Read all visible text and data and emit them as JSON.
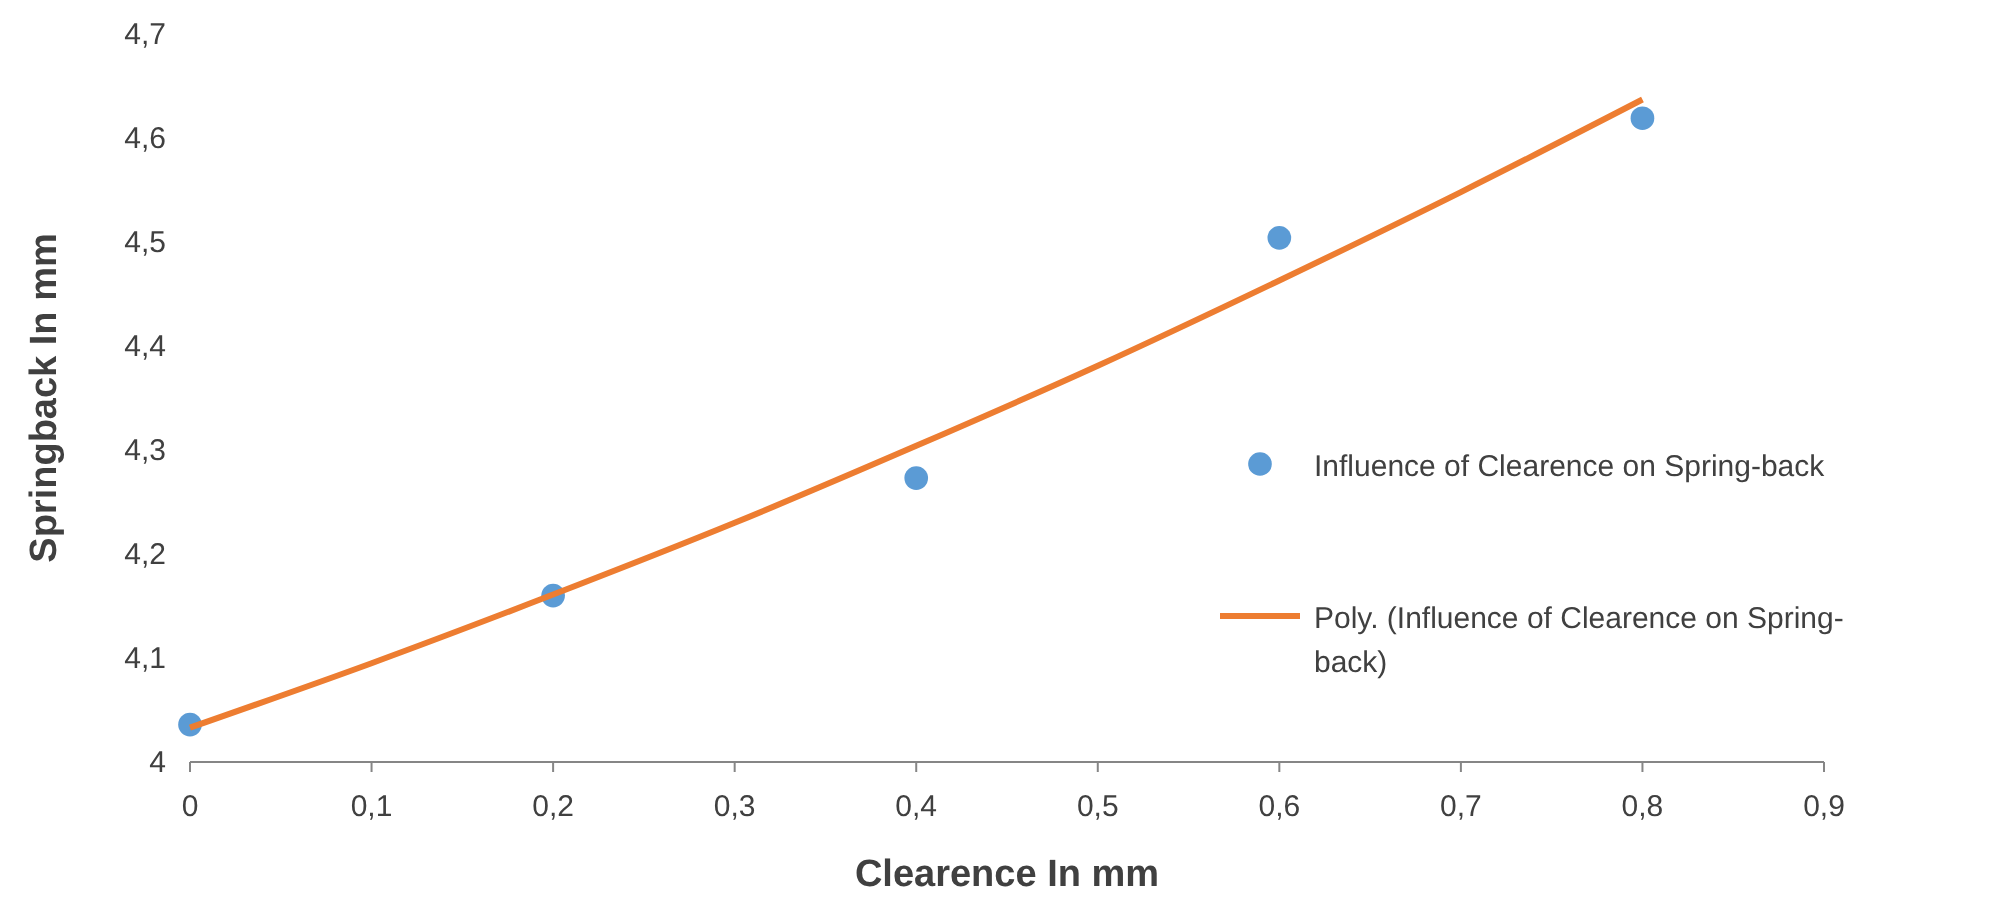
{
  "chart_data": {
    "type": "scatter",
    "xlabel": "Clearence In mm",
    "ylabel": "Springback In mm",
    "legend": "right",
    "marker": "circle",
    "grid": false,
    "xlim": [
      0,
      0.9
    ],
    "xticks": [
      0,
      {
        "value": 0.1,
        "label": "0,1"
      },
      {
        "value": 0.2,
        "label": "0,2"
      },
      {
        "value": 0.3,
        "label": "0,3"
      },
      {
        "value": 0.4,
        "label": "0,4"
      },
      {
        "value": 0.5,
        "label": "0,5"
      },
      {
        "value": 0.6,
        "label": "0,6"
      },
      {
        "value": 0.7,
        "label": "0,7"
      },
      {
        "value": 0.8,
        "label": "0,8"
      },
      {
        "value": 0.9,
        "label": "0,9"
      }
    ],
    "ylim": [
      4,
      4.7
    ],
    "yticks": [
      4,
      {
        "value": 4.1,
        "label": "4,1"
      },
      {
        "value": 4.2,
        "label": "4,2"
      },
      {
        "value": 4.3,
        "label": "4,3"
      },
      {
        "value": 4.4,
        "label": "4,4"
      },
      {
        "value": 4.5,
        "label": "4,5"
      },
      {
        "value": 4.6,
        "label": "4,6"
      },
      {
        "value": 4.7,
        "label": "4,7"
      }
    ],
    "series": [
      {
        "name": "Influence of Clearence on Spring-back",
        "color": "#5b9bd5",
        "x": [
          0,
          0.2,
          0.4,
          0.6,
          0.8
        ],
        "values": [
          4.036,
          4.16,
          4.273,
          4.504,
          4.619
        ]
      },
      {
        "name": "Poly. (Influence of Clearence on Spring-back)",
        "type": "line",
        "color": "#ed7d31",
        "marker": "none",
        "x": [
          0,
          0.1,
          0.2,
          0.3,
          0.4,
          0.5,
          0.6,
          0.7,
          0.8
        ],
        "values": [
          4.033,
          4.095,
          4.161,
          4.23,
          4.304,
          4.381,
          4.463,
          4.548,
          4.637
        ]
      }
    ]
  }
}
